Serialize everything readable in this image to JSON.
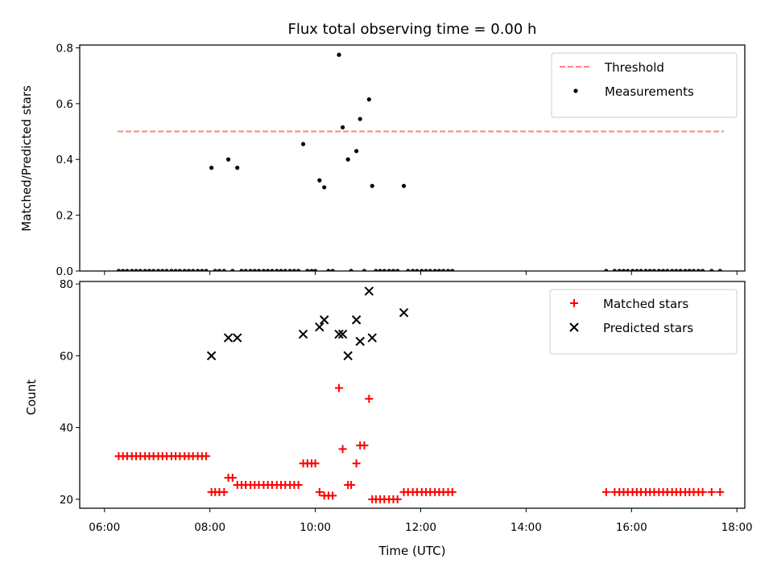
{
  "chart_data": [
    {
      "type": "scatter",
      "title": "Flux total observing time = 0.00 h",
      "xlabel": "",
      "ylabel": "Matched/Predicted stars",
      "xlim": [
        5.53,
        18.15
      ],
      "ylim": [
        0.0,
        0.81
      ],
      "yticks": [
        0.0,
        0.2,
        0.4,
        0.6,
        0.8
      ],
      "ytick_labels": [
        "0.0",
        "0.2",
        "0.4",
        "0.6",
        "0.8"
      ],
      "legend_position": "top-right",
      "threshold": {
        "name": "Threshold",
        "y": 0.5,
        "x_range": [
          6.25,
          17.75
        ],
        "color": "#ff7f7f",
        "style": "dashed"
      },
      "series": [
        {
          "name": "Measurements",
          "marker": "dot",
          "color": "#000000",
          "points": [
            [
              8.03,
              0.37
            ],
            [
              8.35,
              0.4
            ],
            [
              8.52,
              0.37
            ],
            [
              9.77,
              0.455
            ],
            [
              10.08,
              0.325
            ],
            [
              10.17,
              0.3
            ],
            [
              10.45,
              0.775
            ],
            [
              10.52,
              0.515
            ],
            [
              10.62,
              0.4
            ],
            [
              10.78,
              0.43
            ],
            [
              10.85,
              0.545
            ],
            [
              11.02,
              0.615
            ],
            [
              11.08,
              0.305
            ],
            [
              11.68,
              0.305
            ],
            [
              6.27,
              0.0
            ],
            [
              6.35,
              0.0
            ],
            [
              6.43,
              0.0
            ],
            [
              6.52,
              0.0
            ],
            [
              6.6,
              0.0
            ],
            [
              6.68,
              0.0
            ],
            [
              6.77,
              0.0
            ],
            [
              6.85,
              0.0
            ],
            [
              6.93,
              0.0
            ],
            [
              7.02,
              0.0
            ],
            [
              7.1,
              0.0
            ],
            [
              7.18,
              0.0
            ],
            [
              7.27,
              0.0
            ],
            [
              7.35,
              0.0
            ],
            [
              7.43,
              0.0
            ],
            [
              7.52,
              0.0
            ],
            [
              7.6,
              0.0
            ],
            [
              7.68,
              0.0
            ],
            [
              7.77,
              0.0
            ],
            [
              7.85,
              0.0
            ],
            [
              7.93,
              0.0
            ],
            [
              8.1,
              0.0
            ],
            [
              8.18,
              0.0
            ],
            [
              8.27,
              0.0
            ],
            [
              8.43,
              0.0
            ],
            [
              8.6,
              0.0
            ],
            [
              8.68,
              0.0
            ],
            [
              8.77,
              0.0
            ],
            [
              8.85,
              0.0
            ],
            [
              8.93,
              0.0
            ],
            [
              9.02,
              0.0
            ],
            [
              9.1,
              0.0
            ],
            [
              9.18,
              0.0
            ],
            [
              9.27,
              0.0
            ],
            [
              9.35,
              0.0
            ],
            [
              9.43,
              0.0
            ],
            [
              9.52,
              0.0
            ],
            [
              9.6,
              0.0
            ],
            [
              9.68,
              0.0
            ],
            [
              9.85,
              0.0
            ],
            [
              9.93,
              0.0
            ],
            [
              10.0,
              0.0
            ],
            [
              10.25,
              0.0
            ],
            [
              10.33,
              0.0
            ],
            [
              10.68,
              0.0
            ],
            [
              10.93,
              0.0
            ],
            [
              11.15,
              0.0
            ],
            [
              11.23,
              0.0
            ],
            [
              11.31,
              0.0
            ],
            [
              11.4,
              0.0
            ],
            [
              11.48,
              0.0
            ],
            [
              11.56,
              0.0
            ],
            [
              11.76,
              0.0
            ],
            [
              11.85,
              0.0
            ],
            [
              11.93,
              0.0
            ],
            [
              12.02,
              0.0
            ],
            [
              12.1,
              0.0
            ],
            [
              12.18,
              0.0
            ],
            [
              12.27,
              0.0
            ],
            [
              12.35,
              0.0
            ],
            [
              12.43,
              0.0
            ],
            [
              12.52,
              0.0
            ],
            [
              12.6,
              0.0
            ],
            [
              15.52,
              0.0
            ],
            [
              15.68,
              0.0
            ],
            [
              15.77,
              0.0
            ],
            [
              15.85,
              0.0
            ],
            [
              15.93,
              0.0
            ],
            [
              16.02,
              0.0
            ],
            [
              16.1,
              0.0
            ],
            [
              16.18,
              0.0
            ],
            [
              16.27,
              0.0
            ],
            [
              16.35,
              0.0
            ],
            [
              16.43,
              0.0
            ],
            [
              16.52,
              0.0
            ],
            [
              16.6,
              0.0
            ],
            [
              16.68,
              0.0
            ],
            [
              16.77,
              0.0
            ],
            [
              16.85,
              0.0
            ],
            [
              16.93,
              0.0
            ],
            [
              17.02,
              0.0
            ],
            [
              17.1,
              0.0
            ],
            [
              17.18,
              0.0
            ],
            [
              17.27,
              0.0
            ],
            [
              17.35,
              0.0
            ],
            [
              17.52,
              0.0
            ],
            [
              17.68,
              0.0
            ]
          ]
        }
      ]
    },
    {
      "type": "scatter",
      "title": "",
      "xlabel": "Time (UTC)",
      "ylabel": "Count",
      "xlim": [
        5.53,
        18.15
      ],
      "ylim": [
        17.5,
        80.7
      ],
      "xticks": [
        6,
        8,
        10,
        12,
        14,
        16,
        18
      ],
      "xtick_labels": [
        "06:00",
        "08:00",
        "10:00",
        "12:00",
        "14:00",
        "16:00",
        "18:00"
      ],
      "yticks": [
        20,
        40,
        60,
        80
      ],
      "ytick_labels": [
        "20",
        "40",
        "60",
        "80"
      ],
      "legend_position": "top-right",
      "series": [
        {
          "name": "Matched stars",
          "marker": "plus",
          "color": "#ff0000",
          "points": [
            [
              6.27,
              32
            ],
            [
              6.35,
              32
            ],
            [
              6.43,
              32
            ],
            [
              6.52,
              32
            ],
            [
              6.6,
              32
            ],
            [
              6.68,
              32
            ],
            [
              6.77,
              32
            ],
            [
              6.85,
              32
            ],
            [
              6.93,
              32
            ],
            [
              7.02,
              32
            ],
            [
              7.1,
              32
            ],
            [
              7.18,
              32
            ],
            [
              7.27,
              32
            ],
            [
              7.35,
              32
            ],
            [
              7.43,
              32
            ],
            [
              7.52,
              32
            ],
            [
              7.6,
              32
            ],
            [
              7.68,
              32
            ],
            [
              7.77,
              32
            ],
            [
              7.85,
              32
            ],
            [
              7.93,
              32
            ],
            [
              8.03,
              22
            ],
            [
              8.1,
              22
            ],
            [
              8.18,
              22
            ],
            [
              8.27,
              22
            ],
            [
              8.35,
              26
            ],
            [
              8.43,
              26
            ],
            [
              8.52,
              24
            ],
            [
              8.6,
              24
            ],
            [
              8.68,
              24
            ],
            [
              8.77,
              24
            ],
            [
              8.85,
              24
            ],
            [
              8.93,
              24
            ],
            [
              9.02,
              24
            ],
            [
              9.1,
              24
            ],
            [
              9.18,
              24
            ],
            [
              9.27,
              24
            ],
            [
              9.35,
              24
            ],
            [
              9.43,
              24
            ],
            [
              9.52,
              24
            ],
            [
              9.6,
              24
            ],
            [
              9.68,
              24
            ],
            [
              9.77,
              30
            ],
            [
              9.85,
              30
            ],
            [
              9.93,
              30
            ],
            [
              10.0,
              30
            ],
            [
              10.08,
              22
            ],
            [
              10.17,
              21
            ],
            [
              10.25,
              21
            ],
            [
              10.33,
              21
            ],
            [
              10.45,
              51
            ],
            [
              10.52,
              34
            ],
            [
              10.62,
              24
            ],
            [
              10.68,
              24
            ],
            [
              10.78,
              30
            ],
            [
              10.85,
              35
            ],
            [
              10.93,
              35
            ],
            [
              11.02,
              48
            ],
            [
              11.08,
              20
            ],
            [
              11.15,
              20
            ],
            [
              11.23,
              20
            ],
            [
              11.31,
              20
            ],
            [
              11.4,
              20
            ],
            [
              11.48,
              20
            ],
            [
              11.56,
              20
            ],
            [
              11.68,
              22
            ],
            [
              11.76,
              22
            ],
            [
              11.85,
              22
            ],
            [
              11.93,
              22
            ],
            [
              12.02,
              22
            ],
            [
              12.1,
              22
            ],
            [
              12.18,
              22
            ],
            [
              12.27,
              22
            ],
            [
              12.35,
              22
            ],
            [
              12.43,
              22
            ],
            [
              12.52,
              22
            ],
            [
              12.6,
              22
            ],
            [
              15.52,
              22
            ],
            [
              15.68,
              22
            ],
            [
              15.77,
              22
            ],
            [
              15.85,
              22
            ],
            [
              15.93,
              22
            ],
            [
              16.02,
              22
            ],
            [
              16.1,
              22
            ],
            [
              16.18,
              22
            ],
            [
              16.27,
              22
            ],
            [
              16.35,
              22
            ],
            [
              16.43,
              22
            ],
            [
              16.52,
              22
            ],
            [
              16.6,
              22
            ],
            [
              16.68,
              22
            ],
            [
              16.77,
              22
            ],
            [
              16.85,
              22
            ],
            [
              16.93,
              22
            ],
            [
              17.02,
              22
            ],
            [
              17.1,
              22
            ],
            [
              17.18,
              22
            ],
            [
              17.27,
              22
            ],
            [
              17.35,
              22
            ],
            [
              17.52,
              22
            ],
            [
              17.68,
              22
            ]
          ]
        },
        {
          "name": "Predicted stars",
          "marker": "x",
          "color": "#000000",
          "points": [
            [
              8.03,
              60
            ],
            [
              8.35,
              65
            ],
            [
              8.52,
              65
            ],
            [
              9.77,
              66
            ],
            [
              10.08,
              68
            ],
            [
              10.17,
              70
            ],
            [
              10.45,
              66
            ],
            [
              10.52,
              66
            ],
            [
              10.62,
              60
            ],
            [
              10.78,
              70
            ],
            [
              10.85,
              64
            ],
            [
              11.02,
              78
            ],
            [
              11.08,
              65
            ],
            [
              11.68,
              72
            ]
          ]
        }
      ]
    }
  ]
}
